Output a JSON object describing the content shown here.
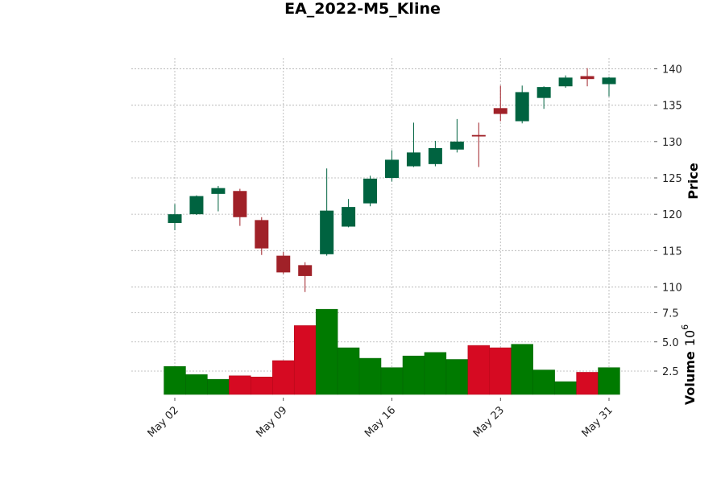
{
  "chart_data": {
    "type": "candlestick",
    "title": "EA_2022-M5_Kline",
    "colors": {
      "up_candle": "#006340",
      "down_candle": "#a02128",
      "up_volume": "#007a00",
      "down_volume": "#d60a22",
      "grid": "#b0b0b0"
    },
    "grid": true,
    "price_axis": {
      "label": "Price",
      "ylim": [
        108.5,
        141.5
      ],
      "ticks": [
        110,
        115,
        120,
        125,
        130,
        135,
        140
      ],
      "tick_labels": [
        "110",
        "115",
        "120",
        "125",
        "130",
        "135",
        "140"
      ]
    },
    "volume_axis": {
      "label": "Volume",
      "exponent_label": "10",
      "exponent_power": "6",
      "ylim": [
        0.5,
        8.5
      ],
      "ticks": [
        2.5,
        5.0,
        7.5
      ],
      "tick_labels": [
        "2.5",
        "5.0",
        "7.5"
      ],
      "unit_multiplier": 1000000
    },
    "x_ticks": [
      {
        "index": 0,
        "label": "May 02"
      },
      {
        "index": 5,
        "label": "May 09"
      },
      {
        "index": 10,
        "label": "May 16"
      },
      {
        "index": 15,
        "label": "May 23"
      },
      {
        "index": 20,
        "label": "May 31"
      }
    ],
    "candles": [
      {
        "date": "2022-05-02",
        "open": 118.8,
        "high": 121.4,
        "low": 117.8,
        "close": 120.0,
        "volume": 2.9
      },
      {
        "date": "2022-05-03",
        "open": 120.0,
        "high": 122.6,
        "low": 119.9,
        "close": 122.5,
        "volume": 2.2
      },
      {
        "date": "2022-05-04",
        "open": 122.8,
        "high": 123.9,
        "low": 120.4,
        "close": 123.6,
        "volume": 1.8
      },
      {
        "date": "2022-05-05",
        "open": 123.2,
        "high": 123.5,
        "low": 118.4,
        "close": 119.6,
        "volume": 2.1
      },
      {
        "date": "2022-05-06",
        "open": 119.2,
        "high": 119.6,
        "low": 114.4,
        "close": 115.3,
        "volume": 2.0
      },
      {
        "date": "2022-05-09",
        "open": 114.3,
        "high": 114.8,
        "low": 111.8,
        "close": 112.0,
        "volume": 3.4
      },
      {
        "date": "2022-05-10",
        "open": 113.0,
        "high": 113.4,
        "low": 109.3,
        "close": 111.5,
        "volume": 6.4
      },
      {
        "date": "2022-05-11",
        "open": 114.5,
        "high": 126.3,
        "low": 114.3,
        "close": 120.5,
        "volume": 7.8
      },
      {
        "date": "2022-05-12",
        "open": 118.3,
        "high": 122.1,
        "low": 118.2,
        "close": 121.0,
        "volume": 4.5
      },
      {
        "date": "2022-05-13",
        "open": 121.5,
        "high": 125.3,
        "low": 121.1,
        "close": 124.9,
        "volume": 3.6
      },
      {
        "date": "2022-05-16",
        "open": 125.0,
        "high": 128.8,
        "low": 124.5,
        "close": 127.5,
        "volume": 2.8
      },
      {
        "date": "2022-05-17",
        "open": 126.6,
        "high": 132.6,
        "low": 126.5,
        "close": 128.5,
        "volume": 3.8
      },
      {
        "date": "2022-05-18",
        "open": 126.9,
        "high": 130.1,
        "low": 126.6,
        "close": 129.1,
        "volume": 4.1
      },
      {
        "date": "2022-05-19",
        "open": 128.9,
        "high": 133.1,
        "low": 128.5,
        "close": 130.0,
        "volume": 3.5
      },
      {
        "date": "2022-05-20",
        "open": 130.9,
        "high": 132.6,
        "low": 126.5,
        "close": 130.7,
        "volume": 4.7
      },
      {
        "date": "2022-05-23",
        "open": 134.6,
        "high": 137.7,
        "low": 132.8,
        "close": 133.8,
        "volume": 4.5
      },
      {
        "date": "2022-05-24",
        "open": 132.8,
        "high": 137.7,
        "low": 132.5,
        "close": 136.8,
        "volume": 4.8
      },
      {
        "date": "2022-05-25",
        "open": 136.0,
        "high": 137.6,
        "low": 134.5,
        "close": 137.5,
        "volume": 2.6
      },
      {
        "date": "2022-05-26",
        "open": 137.6,
        "high": 139.1,
        "low": 137.4,
        "close": 138.8,
        "volume": 1.6
      },
      {
        "date": "2022-05-27",
        "open": 139.0,
        "high": 140.1,
        "low": 137.6,
        "close": 138.6,
        "volume": 2.4
      },
      {
        "date": "2022-05-31",
        "open": 137.9,
        "high": 138.9,
        "low": 136.2,
        "close": 138.8,
        "volume": 2.8
      }
    ]
  }
}
